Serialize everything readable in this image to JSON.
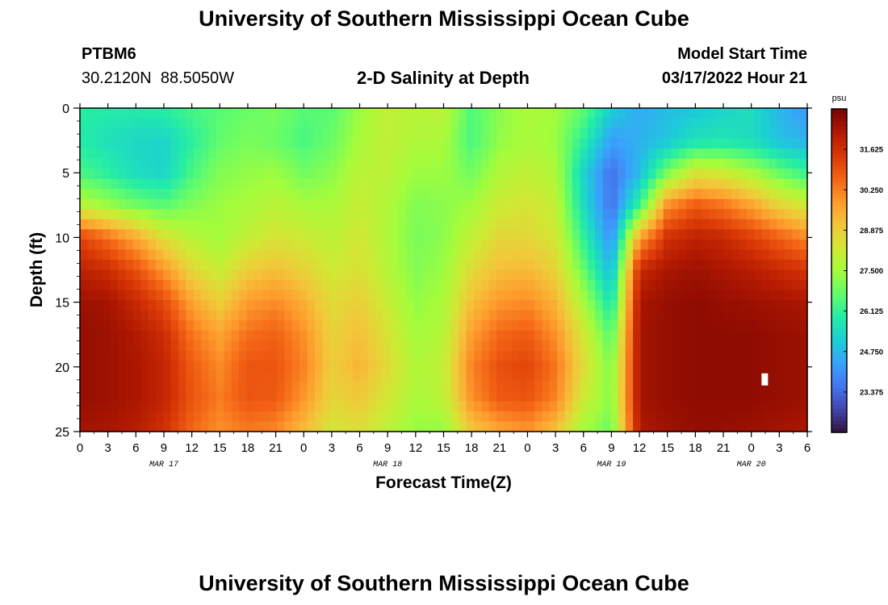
{
  "header": {
    "title": "University of Southern Mississippi Ocean Cube",
    "station_id": "PTBM6",
    "station_coords": "30.2120N  88.5050W",
    "chart_heading": "2-D Salinity at Depth",
    "model_start_label": "Model Start Time",
    "model_start_value": "03/17/2022 Hour 21"
  },
  "footer": {
    "title": "University of Southern Mississippi Ocean Cube"
  },
  "chart_data": {
    "type": "heatmap",
    "title": "2-D Salinity at Depth",
    "xlabel": "Forecast Time(Z)",
    "ylabel": "Depth (ft)",
    "x_tick_labels": [
      "0",
      "3",
      "6",
      "9",
      "12",
      "15",
      "18",
      "21",
      "0",
      "3",
      "6",
      "9",
      "12",
      "15",
      "18",
      "21",
      "0",
      "3",
      "6",
      "9",
      "12",
      "15",
      "18",
      "21",
      "0",
      "3",
      "6"
    ],
    "x_hours_since_start": [
      -21,
      -18,
      -15,
      -12,
      -9,
      -6,
      -3,
      0,
      3,
      6,
      9,
      12,
      15,
      18,
      21,
      24,
      27,
      30,
      33,
      36,
      39,
      42,
      45,
      48,
      51,
      54,
      57
    ],
    "date_labels": [
      {
        "label": "MAR 17",
        "at_tick": 3
      },
      {
        "label": "MAR 18",
        "at_tick": 11
      },
      {
        "label": "MAR 19",
        "at_tick": 19
      },
      {
        "label": "MAR 20",
        "at_tick": 24
      }
    ],
    "y_ticks": [
      0,
      5,
      10,
      15,
      20,
      25
    ],
    "ylim": [
      0,
      25
    ],
    "y_inverted": true,
    "colorbar": {
      "unit": "psu",
      "tick_values": [
        31.625,
        30.25,
        28.875,
        27.5,
        26.125,
        24.75,
        23.375
      ],
      "tick_labels": [
        "31.625",
        "30.250",
        "28.875",
        "27.500",
        "26.125",
        "24.750",
        "23.375"
      ],
      "range": [
        22.0,
        33.0
      ],
      "colormap": [
        "#30123b",
        "#4145ab",
        "#4675ed",
        "#39a2fc",
        "#1bcfd4",
        "#24eca6",
        "#61fc6c",
        "#a4fc3b",
        "#d1e834",
        "#f3c63a",
        "#fe9b2d",
        "#f36315",
        "#d93806",
        "#b11901",
        "#7a0402"
      ]
    },
    "depth_levels_ft": [
      0,
      2.5,
      5,
      7.5,
      10,
      12.5,
      15,
      17.5,
      20,
      22.5,
      25
    ],
    "columns": [
      {
        "x": -21,
        "s": [
          26.0,
          25.9,
          26.4,
          27.9,
          31.2,
          32.0,
          32.5,
          32.6,
          32.6,
          32.6,
          32.4
        ]
      },
      {
        "x": -18,
        "s": [
          25.9,
          25.6,
          26.0,
          27.4,
          30.5,
          31.7,
          32.4,
          32.5,
          32.5,
          32.5,
          32.3
        ]
      },
      {
        "x": -15,
        "s": [
          25.9,
          25.4,
          25.5,
          26.9,
          29.6,
          31.0,
          31.8,
          32.2,
          32.3,
          32.3,
          32.1
        ]
      },
      {
        "x": -12,
        "s": [
          26.0,
          25.3,
          25.3,
          26.6,
          28.5,
          29.9,
          31.1,
          31.7,
          31.9,
          31.9,
          31.6
        ]
      },
      {
        "x": -9,
        "s": [
          26.4,
          26.0,
          26.4,
          27.1,
          27.8,
          28.7,
          29.7,
          30.4,
          30.8,
          30.9,
          30.6
        ]
      },
      {
        "x": -6,
        "s": [
          26.6,
          26.7,
          27.1,
          27.4,
          27.5,
          28.1,
          28.9,
          29.7,
          30.1,
          30.3,
          30.0
        ]
      },
      {
        "x": -3,
        "s": [
          26.8,
          27.0,
          27.3,
          27.6,
          28.0,
          28.9,
          29.8,
          30.5,
          30.9,
          30.9,
          30.3
        ]
      },
      {
        "x": 0,
        "s": [
          27.0,
          26.8,
          27.4,
          27.9,
          28.4,
          29.2,
          30.1,
          30.7,
          30.9,
          30.8,
          30.1
        ]
      },
      {
        "x": 3,
        "s": [
          26.6,
          26.4,
          26.9,
          27.6,
          28.2,
          28.8,
          29.5,
          30.0,
          30.2,
          29.9,
          29.2
        ]
      },
      {
        "x": 6,
        "s": [
          26.6,
          26.8,
          27.2,
          27.6,
          27.9,
          28.2,
          28.6,
          28.8,
          28.9,
          28.7,
          28.3
        ]
      },
      {
        "x": 9,
        "s": [
          27.4,
          27.6,
          27.9,
          28.1,
          28.3,
          28.5,
          28.9,
          29.2,
          29.4,
          29.0,
          28.5
        ]
      },
      {
        "x": 12,
        "s": [
          28.0,
          28.0,
          27.9,
          27.7,
          27.7,
          27.8,
          28.1,
          28.4,
          28.6,
          28.3,
          27.9
        ]
      },
      {
        "x": 15,
        "s": [
          27.8,
          27.7,
          27.4,
          27.1,
          27.0,
          27.1,
          27.3,
          27.5,
          27.7,
          27.6,
          27.3
        ]
      },
      {
        "x": 18,
        "s": [
          27.9,
          27.6,
          27.4,
          27.2,
          27.2,
          27.4,
          27.6,
          27.8,
          28.0,
          27.9,
          27.3
        ]
      },
      {
        "x": 21,
        "s": [
          26.5,
          26.4,
          26.9,
          27.5,
          28.0,
          28.6,
          29.2,
          29.8,
          30.2,
          30.0,
          29.0
        ]
      },
      {
        "x": 24,
        "s": [
          27.2,
          27.3,
          27.7,
          28.2,
          28.7,
          29.2,
          29.9,
          30.6,
          31.0,
          30.8,
          29.6
        ]
      },
      {
        "x": 27,
        "s": [
          27.6,
          27.6,
          28.0,
          28.4,
          28.7,
          29.3,
          30.1,
          30.8,
          31.2,
          30.9,
          29.9
        ]
      },
      {
        "x": 30,
        "s": [
          27.5,
          27.4,
          27.7,
          28.0,
          28.3,
          28.8,
          29.4,
          30.0,
          30.4,
          30.2,
          29.1
        ]
      },
      {
        "x": 33,
        "s": [
          26.7,
          26.0,
          25.3,
          25.5,
          26.1,
          26.8,
          27.6,
          28.3,
          28.6,
          28.2,
          27.5
        ]
      },
      {
        "x": 36,
        "s": [
          25.2,
          24.3,
          23.5,
          23.5,
          24.0,
          24.7,
          25.6,
          26.5,
          27.0,
          27.1,
          26.8
        ]
      },
      {
        "x": 39,
        "s": [
          24.5,
          24.6,
          24.8,
          26.2,
          29.7,
          31.8,
          32.3,
          32.4,
          32.4,
          32.4,
          32.2
        ]
      },
      {
        "x": 42,
        "s": [
          24.8,
          25.0,
          27.0,
          30.0,
          31.6,
          32.3,
          32.6,
          32.6,
          32.6,
          32.6,
          32.5
        ]
      },
      {
        "x": 45,
        "s": [
          25.0,
          25.6,
          28.4,
          30.8,
          32.0,
          32.5,
          32.7,
          32.7,
          32.7,
          32.7,
          32.6
        ]
      },
      {
        "x": 48,
        "s": [
          25.3,
          25.7,
          28.2,
          30.4,
          31.8,
          32.3,
          32.6,
          32.7,
          32.7,
          32.7,
          32.6
        ]
      },
      {
        "x": 51,
        "s": [
          25.5,
          25.5,
          27.6,
          29.7,
          31.3,
          32.1,
          32.5,
          32.7,
          32.7,
          32.7,
          32.5
        ]
      },
      {
        "x": 54,
        "s": [
          24.7,
          24.9,
          26.8,
          28.8,
          30.7,
          31.8,
          32.4,
          32.6,
          32.6,
          32.6,
          32.4
        ]
      },
      {
        "x": 57,
        "s": [
          24.2,
          24.6,
          26.2,
          28.2,
          30.1,
          31.5,
          32.3,
          32.5,
          32.5,
          32.5,
          32.3
        ]
      }
    ]
  }
}
